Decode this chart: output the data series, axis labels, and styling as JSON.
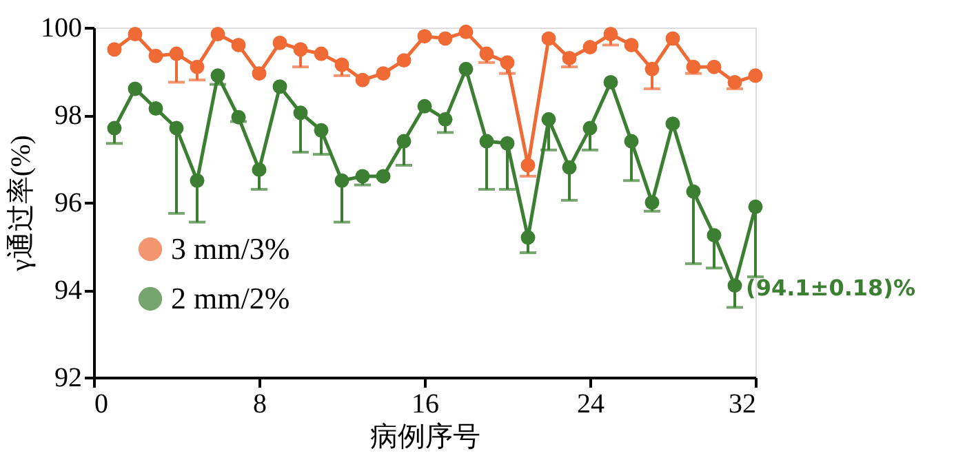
{
  "chart_data": {
    "type": "line",
    "xlabel": "病例序号",
    "ylabel": "γ通过率(%)",
    "x": [
      1,
      2,
      3,
      4,
      5,
      6,
      7,
      8,
      9,
      10,
      11,
      12,
      13,
      14,
      15,
      16,
      17,
      18,
      19,
      20,
      21,
      22,
      23,
      24,
      25,
      26,
      27,
      28,
      29,
      30,
      31,
      32
    ],
    "xlim": [
      0,
      32
    ],
    "xticks": [
      0,
      8,
      16,
      24,
      32
    ],
    "ylim": [
      92,
      100
    ],
    "yticks": [
      92,
      94,
      96,
      98,
      100
    ],
    "grid": false,
    "legend": "left",
    "marker": "circle",
    "line_style": "solid",
    "series": [
      {
        "name": "3 mm/3%",
        "color": "#f06a35",
        "values": [
          99.5,
          99.85,
          99.35,
          99.4,
          99.1,
          99.85,
          99.6,
          98.95,
          99.65,
          99.5,
          99.4,
          99.15,
          98.8,
          98.95,
          99.25,
          99.8,
          99.75,
          99.9,
          99.4,
          99.2,
          96.85,
          99.75,
          99.3,
          99.55,
          99.85,
          99.6,
          99.05,
          99.75,
          99.1,
          99.1,
          98.75,
          98.9
        ],
        "errors": [
          null,
          null,
          null,
          [
            98.75,
            99.4
          ],
          [
            98.8,
            99.1
          ],
          null,
          null,
          null,
          null,
          [
            99.1,
            99.5
          ],
          null,
          [
            98.9,
            99.15
          ],
          null,
          null,
          null,
          null,
          null,
          null,
          [
            99.2,
            99.4
          ],
          [
            98.95,
            99.2
          ],
          [
            96.6,
            96.85
          ],
          null,
          [
            99.1,
            99.3
          ],
          null,
          [
            99.6,
            99.85
          ],
          null,
          [
            98.6,
            99.05
          ],
          null,
          [
            98.95,
            99.1
          ],
          null,
          [
            98.6,
            98.75
          ],
          null
        ]
      },
      {
        "name": "2 mm/2%",
        "color": "#3d7f32",
        "values": [
          97.7,
          98.6,
          98.15,
          97.7,
          96.5,
          98.9,
          97.95,
          96.75,
          98.65,
          98.05,
          97.65,
          96.5,
          96.6,
          96.6,
          97.4,
          98.2,
          97.9,
          99.05,
          97.4,
          97.35,
          95.2,
          97.9,
          96.8,
          97.7,
          98.75,
          97.4,
          96.0,
          97.8,
          96.25,
          95.25,
          94.1,
          95.9
        ],
        "errors": [
          [
            97.35,
            97.7
          ],
          null,
          null,
          [
            95.75,
            97.7
          ],
          [
            95.55,
            96.5
          ],
          [
            98.7,
            98.9
          ],
          [
            97.85,
            97.95
          ],
          [
            96.3,
            96.75
          ],
          null,
          [
            97.15,
            98.05
          ],
          [
            97.1,
            97.65
          ],
          [
            95.55,
            96.5
          ],
          [
            96.4,
            96.6
          ],
          null,
          [
            96.85,
            97.4
          ],
          null,
          [
            97.6,
            97.9
          ],
          null,
          [
            96.3,
            97.4
          ],
          [
            96.3,
            97.35
          ],
          [
            94.85,
            95.2
          ],
          [
            97.2,
            97.9
          ],
          [
            96.05,
            96.8
          ],
          [
            97.2,
            97.7
          ],
          null,
          [
            96.5,
            97.4
          ],
          [
            95.8,
            96.0
          ],
          null,
          [
            94.6,
            96.25
          ],
          [
            94.5,
            95.25
          ],
          [
            93.6,
            94.1
          ],
          [
            94.3,
            95.9
          ]
        ]
      }
    ],
    "annotations": [
      {
        "text": "(94.1±0.18)%",
        "x": 31,
        "y": 94.1
      }
    ]
  }
}
